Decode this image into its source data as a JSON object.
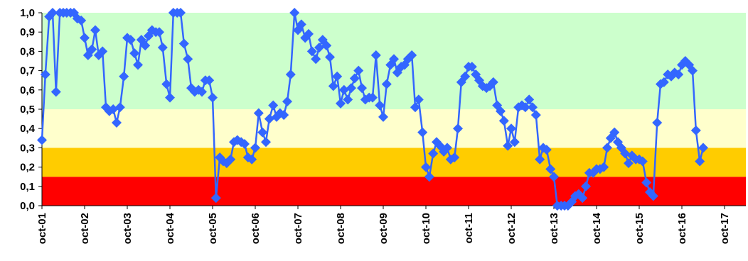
{
  "chart_data": {
    "type": "line",
    "title": "",
    "xlabel": "",
    "ylabel": "",
    "ylim": [
      0,
      1
    ],
    "yticks": [
      "0,0",
      "0,1",
      "0,2",
      "0,3",
      "0,4",
      "0,5",
      "0,6",
      "0,7",
      "0,8",
      "0,9",
      "1,0"
    ],
    "x_tick_labels": [
      "oct-01",
      "oct-02",
      "oct-03",
      "oct-04",
      "oct-05",
      "oct-06",
      "oct-07",
      "oct-08",
      "oct-09",
      "oct-10",
      "oct-11",
      "oct-12",
      "oct-13",
      "oct-14",
      "oct-15",
      "oct-16",
      "oct-17"
    ],
    "x_range_years": [
      2001.75,
      2018.25
    ],
    "bands": [
      {
        "from": 0.0,
        "to": 0.15,
        "color": "#ff0000"
      },
      {
        "from": 0.15,
        "to": 0.3,
        "color": "#ffcc00"
      },
      {
        "from": 0.3,
        "to": 0.5,
        "color": "#ffffcc"
      },
      {
        "from": 0.5,
        "to": 1.0,
        "color": "#ccffcc"
      }
    ],
    "grid": false,
    "legend": "none",
    "series_color": "#3366ff",
    "marker": "diamond",
    "series": [
      {
        "x": [
          2001.75,
          2001.83,
          2001.92,
          2002.0,
          2002.08,
          2002.17,
          2002.25,
          2002.33,
          2002.42,
          2002.5,
          2002.58,
          2002.67,
          2002.75,
          2002.83,
          2002.92,
          2003.0,
          2003.08,
          2003.17,
          2003.25,
          2003.33,
          2003.42,
          2003.5,
          2003.58,
          2003.67,
          2003.75,
          2003.83,
          2003.92,
          2004.0,
          2004.08,
          2004.17,
          2004.25,
          2004.33,
          2004.42,
          2004.5,
          2004.58,
          2004.67,
          2004.75,
          2004.83,
          2004.92,
          2005.0,
          2005.08,
          2005.17,
          2005.25,
          2005.33,
          2005.42,
          2005.5,
          2005.58,
          2005.67,
          2005.75,
          2005.83,
          2005.92,
          2006.0,
          2006.08,
          2006.17,
          2006.25,
          2006.33,
          2006.42,
          2006.5,
          2006.58,
          2006.67,
          2006.75,
          2006.83,
          2006.92,
          2007.0,
          2007.08,
          2007.17,
          2007.25,
          2007.33,
          2007.42,
          2007.5,
          2007.58,
          2007.67,
          2007.75,
          2007.83,
          2007.92,
          2008.0,
          2008.08,
          2008.17,
          2008.25,
          2008.33,
          2008.42,
          2008.5,
          2008.58,
          2008.67,
          2008.75,
          2008.83,
          2008.92,
          2009.0,
          2009.08,
          2009.17,
          2009.25,
          2009.33,
          2009.42,
          2009.5,
          2009.58,
          2009.67,
          2009.75,
          2009.83,
          2009.92,
          2010.0,
          2010.08,
          2010.17,
          2010.25,
          2010.33,
          2010.42,
          2010.5,
          2010.58,
          2010.67,
          2010.75,
          2010.83,
          2010.92,
          2011.0,
          2011.08,
          2011.17,
          2011.25,
          2011.33,
          2011.42,
          2011.5,
          2011.58,
          2011.67,
          2011.75,
          2011.83,
          2011.92,
          2012.0,
          2012.08,
          2012.17,
          2012.25,
          2012.33,
          2012.42,
          2012.5,
          2012.58,
          2012.67,
          2012.75,
          2012.83,
          2012.92,
          2013.0,
          2013.08,
          2013.17,
          2013.25,
          2013.33,
          2013.42,
          2013.5,
          2013.58,
          2013.67,
          2013.75,
          2013.83,
          2013.92,
          2014.0,
          2014.08,
          2014.17,
          2014.25,
          2014.33,
          2014.42,
          2014.5,
          2014.58,
          2014.67,
          2014.75,
          2014.83,
          2014.92,
          2015.0,
          2015.08,
          2015.17,
          2015.25,
          2015.33,
          2015.42,
          2015.5,
          2015.58,
          2015.67,
          2015.75,
          2015.83,
          2015.92,
          2016.0,
          2016.08,
          2016.17,
          2016.25,
          2016.33,
          2016.42,
          2016.5,
          2016.58,
          2016.67,
          2016.75,
          2016.83,
          2016.92,
          2017.0,
          2017.08,
          2017.17,
          2017.25
        ],
        "y": [
          0.34,
          0.68,
          0.98,
          1.0,
          0.59,
          1.0,
          1.0,
          1.0,
          1.0,
          1.0,
          0.97,
          0.96,
          0.87,
          0.78,
          0.81,
          0.91,
          0.78,
          0.8,
          0.51,
          0.49,
          0.5,
          0.43,
          0.51,
          0.67,
          0.87,
          0.86,
          0.79,
          0.73,
          0.86,
          0.83,
          0.88,
          0.91,
          0.9,
          0.9,
          0.82,
          0.63,
          0.56,
          1.0,
          1.0,
          1.0,
          0.84,
          0.76,
          0.61,
          0.59,
          0.6,
          0.59,
          0.65,
          0.65,
          0.56,
          0.04,
          0.25,
          0.23,
          0.22,
          0.24,
          0.33,
          0.34,
          0.33,
          0.32,
          0.25,
          0.24,
          0.3,
          0.48,
          0.38,
          0.33,
          0.45,
          0.52,
          0.46,
          0.48,
          0.47,
          0.54,
          0.68,
          1.0,
          0.91,
          0.94,
          0.87,
          0.89,
          0.8,
          0.76,
          0.82,
          0.86,
          0.83,
          0.77,
          0.62,
          0.67,
          0.53,
          0.6,
          0.55,
          0.61,
          0.66,
          0.7,
          0.61,
          0.55,
          0.56,
          0.56,
          0.78,
          0.52,
          0.46,
          0.63,
          0.73,
          0.76,
          0.69,
          0.72,
          0.73,
          0.76,
          0.78,
          0.51,
          0.55,
          0.38,
          0.2,
          0.15,
          0.27,
          0.33,
          0.31,
          0.28,
          0.3,
          0.24,
          0.25,
          0.4,
          0.64,
          0.67,
          0.72,
          0.72,
          0.68,
          0.65,
          0.62,
          0.61,
          0.62,
          0.64,
          0.52,
          0.49,
          0.44,
          0.31,
          0.4,
          0.33,
          0.51,
          0.52,
          0.51,
          0.55,
          0.51,
          0.47,
          0.24,
          0.3,
          0.29,
          0.19,
          0.15,
          0.0,
          0.0,
          0.0,
          0.0,
          0.02,
          0.05,
          0.06,
          0.04,
          0.1,
          0.17,
          0.17,
          0.19,
          0.19,
          0.2,
          0.3,
          0.35,
          0.38,
          0.33,
          0.3,
          0.27,
          0.22,
          0.26,
          0.24,
          0.24,
          0.23,
          0.12,
          0.07,
          0.05,
          0.43,
          0.63,
          0.64,
          0.68,
          0.67,
          0.69,
          0.68,
          0.73,
          0.75,
          0.73,
          0.7,
          0.39,
          0.23,
          0.3
        ]
      }
    ]
  }
}
